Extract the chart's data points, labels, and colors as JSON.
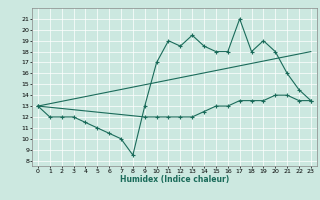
{
  "xlabel": "Humidex (Indice chaleur)",
  "xlim": [
    -0.5,
    23.5
  ],
  "ylim": [
    7.5,
    22
  ],
  "yticks": [
    8,
    9,
    10,
    11,
    12,
    13,
    14,
    15,
    16,
    17,
    18,
    19,
    20,
    21
  ],
  "xticks": [
    0,
    1,
    2,
    3,
    4,
    5,
    6,
    7,
    8,
    9,
    10,
    11,
    12,
    13,
    14,
    15,
    16,
    17,
    18,
    19,
    20,
    21,
    22,
    23
  ],
  "bg_color": "#cce8e0",
  "line_color": "#1a6b5a",
  "line1_x": [
    0,
    1,
    2,
    3,
    4,
    5,
    6,
    7,
    8,
    9,
    10,
    11,
    12,
    13,
    14,
    15,
    16,
    17,
    18,
    19,
    20,
    21,
    22,
    23
  ],
  "line1_y": [
    13,
    12,
    12,
    12,
    11.5,
    11,
    10.5,
    10,
    8.5,
    13,
    17,
    19,
    18.5,
    19.5,
    18.5,
    18,
    18,
    21,
    18,
    19,
    18,
    16,
    14.5,
    13.5
  ],
  "line2_x": [
    0,
    23
  ],
  "line2_y": [
    13,
    18
  ],
  "line3_x": [
    0,
    9,
    10,
    11,
    12,
    13,
    14,
    15,
    16,
    17,
    18,
    19,
    20,
    21,
    22,
    23
  ],
  "line3_y": [
    13,
    12,
    12,
    12,
    12,
    12,
    12.5,
    13,
    13,
    13.5,
    13.5,
    13.5,
    14,
    14,
    13.5,
    13.5
  ]
}
